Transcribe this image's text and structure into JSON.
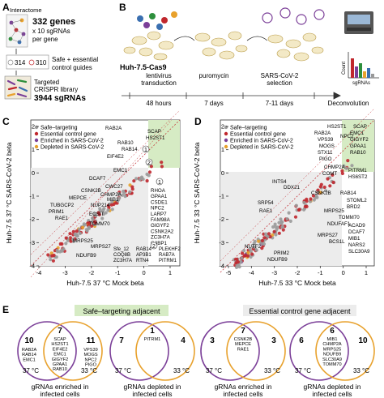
{
  "panelA": {
    "label": "A",
    "interactome": "Interactome",
    "genes": "332 genes",
    "per_gene": "x 10 sgRNAs",
    "per_gene2": "per gene",
    "n314": "314",
    "n310": "310",
    "controls1": "Safe + essential",
    "controls2": "control guides",
    "library1": "Targeted",
    "library2": "CRISPR library",
    "library3": "3944 sgRNAs"
  },
  "panelB": {
    "label": "B",
    "cell_line": "Huh-7.5-Cas9",
    "step1a": "lentivirus",
    "step1b": "transduction",
    "step2": "puromycin",
    "step3a": "SARS-CoV-2",
    "step3b": "selection",
    "time1": "48 hours",
    "time2": "7 days",
    "time3": "7-11 days",
    "time4": "Deconvolution",
    "ylab": "Count",
    "xlab": "sgRNAs"
  },
  "panelC": {
    "label": "C",
    "xlabel": "Huh-7.5 37 °C Mock beta",
    "ylabel": "Huh-7.5 37 °C SARS-CoV-2 beta",
    "legend": [
      "Safe–targeting",
      "Essential control gene",
      "Enriched in SARS-CoV-2",
      "Depleted in SARS-CoV-2"
    ],
    "xticks": [
      "-4",
      "-3",
      "-2",
      "-1",
      "0",
      "1"
    ],
    "yticks": [
      "-4",
      "-3",
      "-2",
      "-1",
      "0",
      "1",
      "2"
    ],
    "callout1": "1",
    "callout2": "2",
    "list1": [
      "RHOA",
      "GPAA1",
      "CSDE1",
      "NPC2",
      "LARP7",
      "FAM98A",
      "GIGYF2",
      "CSNK2A2",
      "ZC3H7A",
      "G3BP1"
    ],
    "list2_col1": [
      "Sfe_12",
      "COQ8B",
      "ZC3H7A"
    ],
    "list2_col2": [
      "RAB14",
      "AP3B1",
      "RTN4"
    ],
    "list2_col3": [
      "PLEKHF2",
      "RAB7A",
      "PITRM1"
    ],
    "point_labels": [
      "SCAP",
      "HS2ST1",
      "RAB2A",
      "RAB10",
      "RAB14",
      "EIF4E2",
      "EMC1",
      "DCAF7",
      "CWC27",
      "CSNK2B",
      "CHMP2A",
      "MEPCE",
      "MIB1",
      "TUBGCP2",
      "NUP214",
      "PRIM1",
      "ECSIT",
      "RAE1",
      "TOMM70",
      "MRPS25",
      "MRPS27",
      "NDUFB9"
    ]
  },
  "panelD": {
    "label": "D",
    "xlabel": "Huh-7.5 33 °C Mock beta",
    "ylabel": "Huh-7.5 33 °C SARS-CoV-2 beta",
    "legend": [
      "Safe–targeting",
      "Essential control gene",
      "Enriched in SARS-CoV-2",
      "Depleted in SARS-CoV-2"
    ],
    "xticks": [
      "-5",
      "-4",
      "-3",
      "-2",
      "-1",
      "0",
      "1"
    ],
    "yticks": [
      "-4",
      "-3",
      "-2",
      "-1",
      "0",
      "1",
      "2"
    ],
    "point_labels": [
      "HS2ST1",
      "SCAP",
      "EMC1",
      "NPC2",
      "RAB2A",
      "VPS39",
      "GIGYF2",
      "MOGS",
      "GPAA1",
      "STX11",
      "RAB10",
      "PIGO",
      "PITRM1",
      "CHMP2A",
      "COMT",
      "HS6ST2",
      "INTS4",
      "DDX21",
      "CSNK2B",
      "RAB14",
      "STOML2",
      "BRD2",
      "SRP54",
      "RAE1",
      "MRPS25",
      "TOMM70",
      "NDUFAF1",
      "ACAD9",
      "DCAF7",
      "MIB1",
      "NARS2",
      "SLC30A9",
      "MRPS27",
      "BCS1L",
      "NUTF2",
      "PRIM2",
      "NDUFB9"
    ]
  },
  "panelE": {
    "label": "E",
    "header1": "Safe–targeting adjacent",
    "header2": "Essential control gene adjacent",
    "venn": [
      {
        "left": "10",
        "mid": "7",
        "right": "11",
        "mid_genes": [
          "SCAP",
          "HS2ST1",
          "EIF4E2",
          "EMC1",
          "GIGYF2",
          "GPAA1",
          "RAB10"
        ],
        "left_genes": [
          "RAB2A",
          "RAB14",
          "EMC1"
        ],
        "right_genes": [
          "VPS39",
          "MOGS",
          "NPC2",
          "PIGO"
        ],
        "caption1": "gRNAs enriched in",
        "caption2": "infected cells"
      },
      {
        "left": "7",
        "mid": "1",
        "right": "4",
        "mid_genes": [
          "PITRM1"
        ],
        "left_genes": [],
        "right_genes": [],
        "caption1": "gRNAs depleted in",
        "caption2": "infected cells"
      },
      {
        "left": "3",
        "mid": "7",
        "right": "3",
        "mid_genes": [
          "CSNK2B",
          "MEPCE",
          "RAE1"
        ],
        "left_genes": [],
        "right_genes": [],
        "caption1": "gRNAs enriched in",
        "caption2": "infected cells"
      },
      {
        "left": "6",
        "mid": "6",
        "right": "10",
        "mid_genes": [
          "MIB1",
          "CHMP2A",
          "MRPS25",
          "NDUFB9",
          "SLC30A9",
          "TOMM70"
        ],
        "left_genes": [],
        "right_genes": [],
        "caption1": "gRNAs depleted in",
        "caption2": "infected cells"
      }
    ],
    "temp37": "37 °C",
    "temp33": "33 °C"
  },
  "colors": {
    "purple": "#7b3f98",
    "orange": "#e8a12c",
    "red": "#c0272d",
    "grey": "#9a9a9a",
    "green": "#d6ebc4",
    "greyfill": "#e7e7e7"
  }
}
